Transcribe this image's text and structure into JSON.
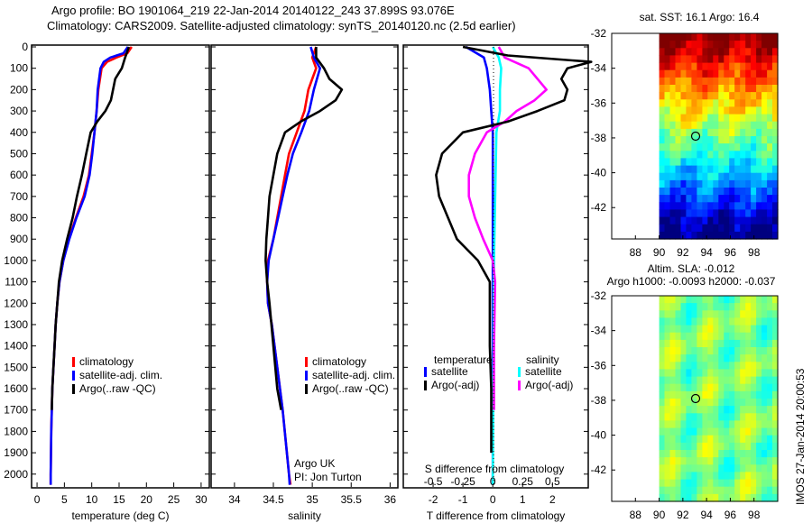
{
  "title": {
    "line1": "Argo profile: BO 1901064_219 22-Jan-2014 20140122_243 37.899S 93.076E",
    "line2": "Climatology: CARS2009. Satellite-adjusted climatology: synTS_20140120.nc (2.5d earlier)"
  },
  "colors": {
    "climatology": "#ff0000",
    "satellite": "#0000ff",
    "argo": "#000000",
    "s_satellite": "#00ffff",
    "s_argo": "#ff00ff"
  },
  "chart_data": [
    {
      "type": "line",
      "name": "temperature",
      "xlabel": "temperature (deg C)",
      "xlim": [
        -1,
        31.5
      ],
      "ylim": [
        0,
        2060
      ],
      "xticks": [
        0,
        5,
        10,
        15,
        20,
        25,
        30
      ],
      "yticks": [
        0,
        100,
        200,
        300,
        400,
        500,
        600,
        700,
        800,
        900,
        1000,
        1100,
        1200,
        1300,
        1400,
        1500,
        1600,
        1700,
        1800,
        1900,
        2000
      ],
      "legend": [
        "climatology",
        "satellite-adj. clim.",
        "Argo(..raw -QC)"
      ],
      "series": [
        {
          "name": "climatology",
          "color": "#ff0000",
          "depth": [
            0,
            30,
            50,
            70,
            100,
            200,
            300,
            400,
            500,
            600,
            700,
            800,
            900,
            1000,
            1100,
            1200,
            1300,
            1400,
            1600,
            1800,
            2000,
            2050
          ],
          "values": [
            17.3,
            16.5,
            14.5,
            12.8,
            11.8,
            11.2,
            10.9,
            10.5,
            10,
            9.5,
            8.5,
            7.1,
            5.8,
            4.8,
            4.1,
            3.7,
            3.4,
            3.2,
            2.8,
            2.6,
            2.5,
            2.5
          ]
        },
        {
          "name": "satellite-adj. clim.",
          "color": "#0000ff",
          "depth": [
            0,
            30,
            50,
            70,
            100,
            200,
            300,
            400,
            500,
            600,
            700,
            800,
            900,
            1000,
            1100,
            1200,
            1300,
            1400,
            1600,
            1800,
            2000,
            2050
          ],
          "values": [
            16.6,
            15.8,
            13.4,
            12.2,
            11.6,
            11.1,
            10.9,
            10.5,
            10.1,
            9.6,
            8.7,
            7.2,
            5.9,
            4.8,
            4.1,
            3.7,
            3.4,
            3.2,
            2.8,
            2.6,
            2.5,
            2.5
          ]
        },
        {
          "name": "Argo(..raw -QC)",
          "color": "#000000",
          "depth": [
            0,
            50,
            100,
            150,
            250,
            300,
            350,
            400,
            500,
            600,
            700,
            800,
            900,
            1000,
            1100,
            1200,
            1300,
            1400,
            1500,
            1600,
            1700
          ],
          "values": [
            16.8,
            16.1,
            15.5,
            14.3,
            13.5,
            12.5,
            11,
            9.8,
            9,
            8.2,
            7.3,
            6.5,
            5.5,
            4.6,
            4,
            3.7,
            3.4,
            3.2,
            3,
            2.8,
            2.7
          ]
        }
      ]
    },
    {
      "type": "line",
      "name": "salinity",
      "xlabel": "salinity",
      "xlim": [
        33.7,
        36.1
      ],
      "ylim": [
        0,
        2060
      ],
      "xticks": [
        34,
        34.5,
        35,
        35.5,
        36
      ],
      "legend": [
        "climatology",
        "satellite-adj. clim.",
        "Argo(..raw -QC)"
      ],
      "annotation": [
        "Argo UK",
        "PI: Jon Turton"
      ],
      "series": [
        {
          "name": "climatology",
          "color": "#ff0000",
          "depth": [
            0,
            50,
            100,
            150,
            200,
            300,
            400,
            500,
            600,
            700,
            800,
            900,
            1000,
            1100,
            1200,
            1300,
            1500,
            1700,
            2000,
            2050
          ],
          "values": [
            35.05,
            35.0,
            35.05,
            35.0,
            34.95,
            34.9,
            34.8,
            34.7,
            34.65,
            34.6,
            34.55,
            34.5,
            34.43,
            34.42,
            34.43,
            34.48,
            34.55,
            34.62,
            34.7,
            34.72
          ]
        },
        {
          "name": "satellite-adj. clim.",
          "color": "#0000ff",
          "depth": [
            0,
            50,
            100,
            150,
            200,
            300,
            400,
            500,
            600,
            700,
            800,
            900,
            1000,
            1100,
            1200,
            1300,
            1500,
            1700,
            2000,
            2050
          ],
          "values": [
            34.98,
            35.02,
            35.1,
            35.06,
            35.02,
            34.96,
            34.86,
            34.75,
            34.68,
            34.62,
            34.56,
            34.5,
            34.44,
            34.42,
            34.43,
            34.48,
            34.55,
            34.62,
            34.7,
            34.71
          ]
        },
        {
          "name": "Argo(..raw -QC)",
          "color": "#000000",
          "depth": [
            0,
            50,
            100,
            150,
            200,
            250,
            300,
            350,
            400,
            500,
            600,
            700,
            800,
            900,
            1000,
            1100,
            1200,
            1400,
            1600,
            1700
          ],
          "values": [
            35.05,
            35.05,
            35.15,
            35.22,
            35.38,
            35.3,
            35.1,
            34.85,
            34.65,
            34.55,
            34.5,
            34.45,
            34.43,
            34.41,
            34.4,
            34.42,
            34.45,
            34.5,
            34.55,
            34.6
          ]
        }
      ]
    },
    {
      "type": "line",
      "name": "differences",
      "xlabel": "T difference from climatology",
      "x2label": "S difference from climatology",
      "xlim": [
        -3,
        3.2
      ],
      "x2lim": [
        -0.75,
        0.8
      ],
      "ylim": [
        0,
        2060
      ],
      "xticks": [
        -2,
        -1,
        0,
        1,
        2
      ],
      "x2ticks": [
        -0.5,
        -0.25,
        0,
        0.25,
        0.5
      ],
      "legend_t": {
        "title": "temperature",
        "items": [
          "satellite",
          "Argo(-adj)"
        ]
      },
      "legend_s": {
        "title": "salinity",
        "items": [
          "satellite",
          "Argo(-adj)"
        ]
      },
      "series": [
        {
          "name": "T satellite",
          "axis": "T",
          "color": "#0000ff",
          "depth": [
            0,
            50,
            100,
            200,
            300,
            400,
            1000,
            2050
          ],
          "values": [
            -0.9,
            -0.3,
            -0.2,
            -0.1,
            -0.05,
            0,
            0,
            0
          ]
        },
        {
          "name": "S satellite",
          "axis": "S",
          "color": "#00ffff",
          "depth": [
            0,
            50,
            100,
            200,
            300,
            400,
            1000,
            2050
          ],
          "values": [
            0,
            0.05,
            0.07,
            0.06,
            0.06,
            0.03,
            0.01,
            0
          ]
        },
        {
          "name": "S Argo(-adj)",
          "axis": "S",
          "color": "#ff00ff",
          "depth": [
            0,
            50,
            100,
            200,
            250,
            300,
            350,
            400,
            500,
            600,
            700,
            800,
            900,
            1000,
            1100,
            1400,
            1700
          ],
          "values": [
            0.05,
            0.1,
            0.3,
            0.45,
            0.35,
            0.2,
            0.1,
            -0.05,
            -0.15,
            -0.2,
            -0.2,
            -0.15,
            -0.08,
            0,
            0.02,
            0.01,
            0.01
          ]
        },
        {
          "name": "T Argo(-adj)",
          "axis": "T",
          "color": "#000000",
          "depth": [
            0,
            40,
            70,
            100,
            150,
            200,
            250,
            300,
            350,
            400,
            500,
            600,
            700,
            800,
            900,
            1000,
            1100,
            1200,
            1400,
            1600,
            1800,
            1900
          ],
          "values": [
            -1,
            0.5,
            3.3,
            2.5,
            2.3,
            2.5,
            2.4,
            1.5,
            0.5,
            -1,
            -1.7,
            -1.9,
            -1.8,
            -1.5,
            -1.2,
            -0.5,
            -0.1,
            -0.1,
            -0.1,
            -0.05,
            -0.05,
            -0.05
          ]
        }
      ]
    },
    {
      "type": "heatmap",
      "name": "sst-map",
      "title": "sat. SST: 16.1  Argo: 16.4",
      "xlim": [
        86,
        100
      ],
      "ylim": [
        -43.8,
        -32
      ],
      "xticks": [
        88,
        90,
        92,
        94,
        96,
        98
      ],
      "yticks": [
        -32,
        -34,
        -36,
        -38,
        -40,
        -42
      ],
      "marker": [
        93.076,
        -37.899
      ]
    },
    {
      "type": "heatmap",
      "name": "sla-map",
      "title1": "Altim. SLA: -0.012",
      "title2": "Argo h1000: -0.0093 h2000: -0.037",
      "xlim": [
        86,
        100
      ],
      "ylim": [
        -43.8,
        -32
      ],
      "xticks": [
        88,
        90,
        92,
        94,
        96,
        98
      ],
      "yticks": [
        -32,
        -34,
        -36,
        -38,
        -40,
        -42
      ],
      "marker": [
        93.076,
        -37.899
      ]
    }
  ],
  "footer": {
    "imos": "IMOS 27-Jan-2014 20:00:53"
  }
}
